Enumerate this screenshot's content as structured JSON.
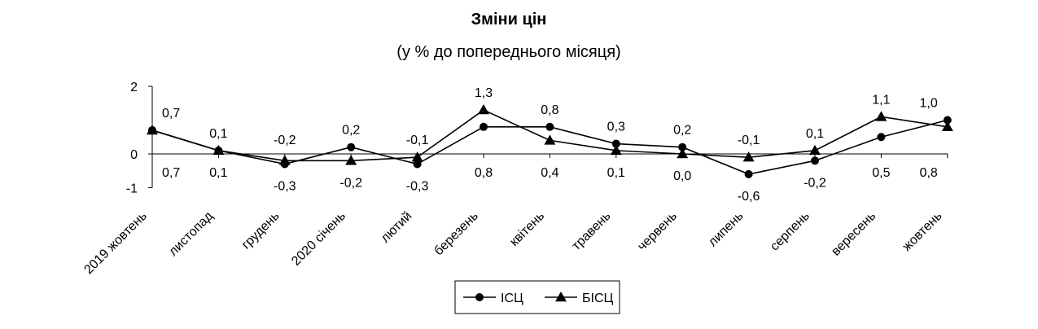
{
  "chart_data": {
    "type": "line",
    "title": "Зміни цін",
    "subtitle": "(у % до попереднього місяця)",
    "categories": [
      "2019 жовтень",
      "листопад",
      "грудень",
      "2020 січень",
      "лютий",
      "березень",
      "квітень",
      "травень",
      "червень",
      "липень",
      "серпень",
      "вересень",
      "жовтень"
    ],
    "series": [
      {
        "name": "ІСЦ",
        "marker": "circle",
        "values": [
          0.7,
          0.1,
          -0.3,
          0.2,
          -0.3,
          0.8,
          0.8,
          0.3,
          0.2,
          -0.6,
          -0.2,
          0.5,
          1.0
        ],
        "labels": [
          "0,7",
          "0,1",
          "-0,3",
          "0,2",
          "-0,3",
          "0,8",
          "0,8",
          "0,3",
          "0,2",
          "-0,6",
          "-0,2",
          "0,5",
          "1,0"
        ],
        "label_pos": [
          "above",
          "above",
          "below",
          "above",
          "below",
          "below",
          "above",
          "above",
          "above",
          "below",
          "below",
          "below",
          "above"
        ]
      },
      {
        "name": "БІСЦ",
        "marker": "triangle",
        "values": [
          0.7,
          0.1,
          -0.2,
          -0.2,
          -0.1,
          1.3,
          0.4,
          0.1,
          0.0,
          -0.1,
          0.1,
          1.1,
          0.8
        ],
        "labels": [
          "0,7",
          "0,1",
          "-0,2",
          "-0,2",
          "-0,1",
          "1,3",
          "0,4",
          "0,1",
          "0,0",
          "-0,1",
          "0,1",
          "1,1",
          "0,8"
        ],
        "label_pos": [
          "below",
          "below",
          "above",
          "below",
          "above",
          "above",
          "below",
          "below",
          "below",
          "above",
          "above",
          "above",
          "below"
        ]
      }
    ],
    "yticks": [
      "2",
      "0",
      "-1"
    ],
    "ylim": [
      -1,
      2
    ],
    "grid": false,
    "legend_position": "bottom-center",
    "line_color": "#000000"
  }
}
